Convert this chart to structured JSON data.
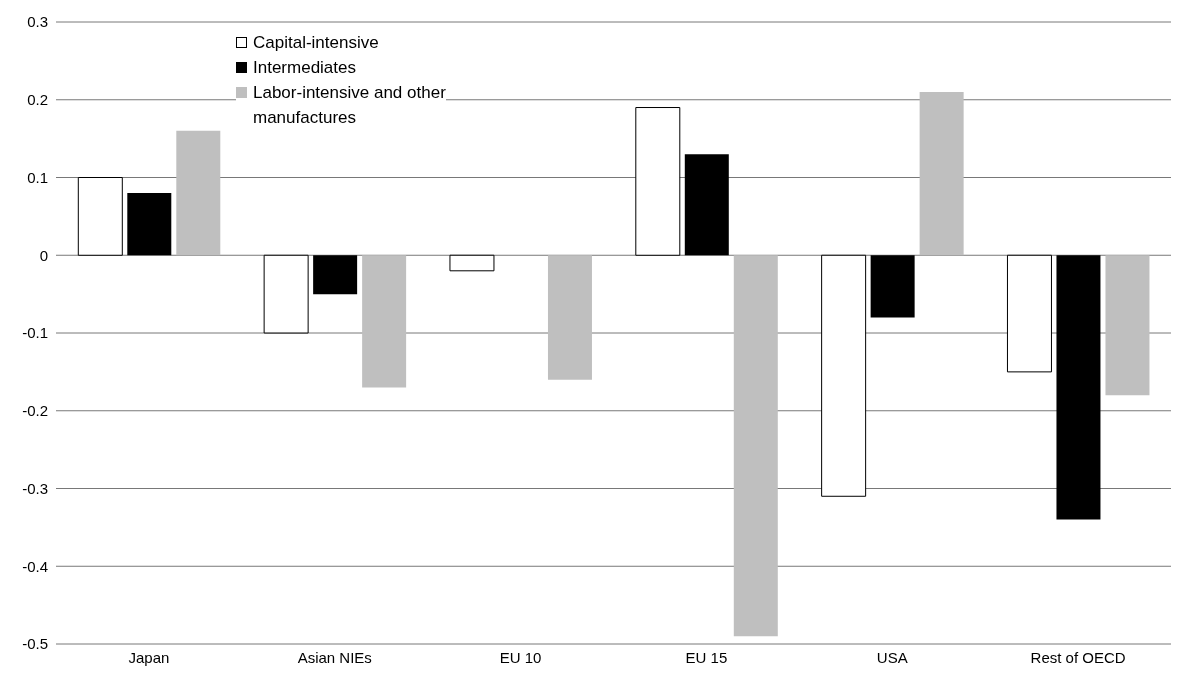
{
  "chart_data": {
    "type": "bar",
    "categories": [
      "Japan",
      "Asian NIEs",
      "EU 10",
      "EU 15",
      "USA",
      "Rest of OECD"
    ],
    "series": [
      {
        "name": "Capital-intensive",
        "color": "#ffffff",
        "values": [
          0.1,
          -0.1,
          -0.02,
          0.19,
          -0.31,
          -0.15
        ]
      },
      {
        "name": "Intermediates",
        "color": "#000000",
        "values": [
          0.08,
          -0.05,
          0,
          0.13,
          -0.08,
          -0.34
        ]
      },
      {
        "name": "Labor-intensive and other manufactures",
        "color": "#bfbfbf",
        "values": [
          0.16,
          -0.17,
          -0.16,
          -0.49,
          0.21,
          -0.18
        ]
      }
    ],
    "ylim": [
      -0.5,
      0.3
    ],
    "yticks": [
      -0.5,
      -0.4,
      -0.3,
      -0.2,
      -0.1,
      0,
      0.1,
      0.2,
      0.3
    ],
    "grid": "y",
    "legend": "top left"
  }
}
